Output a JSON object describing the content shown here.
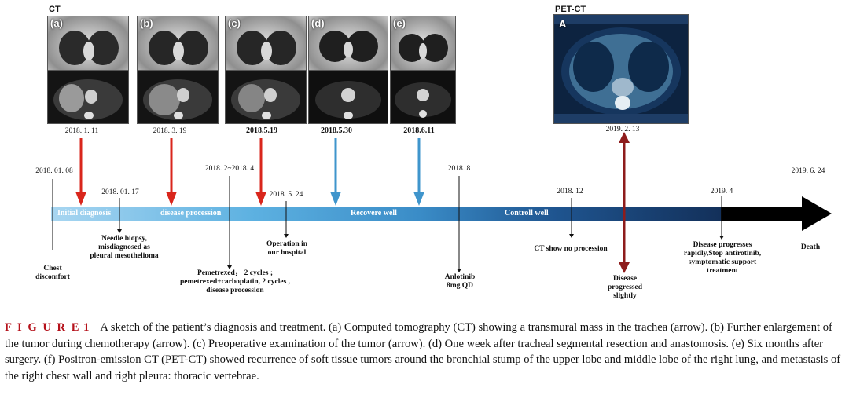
{
  "figure": {
    "ct_label": "CT",
    "pet_label": "PET-CT",
    "scans": [
      {
        "letter": "(a)"
      },
      {
        "letter": "(b)"
      },
      {
        "letter": "(c)"
      },
      {
        "letter": "(d)"
      },
      {
        "letter": "(e)"
      }
    ],
    "pet_letter": "A"
  },
  "timeline": {
    "scan_dates": [
      "2018. 1. 11",
      "2018. 3. 19",
      "2018.5.19",
      "2018.5.30",
      "2018.6.11",
      "2019. 2. 13"
    ],
    "upper_dates": [
      "2018. 01. 08",
      "2018. 01. 17",
      "2018. 2~2018. 4",
      "2018. 5. 24",
      "2018. 8",
      "2018. 12",
      "2019. 4",
      "2019. 6. 24"
    ],
    "phases": [
      "Initial diagnosis",
      "disease procession",
      "Recovere well",
      "Controll well"
    ],
    "notes": {
      "chest": "Chest\ndiscomfort",
      "biopsy": "Needle biopsy,\nmisdiagnosed as\npleural mesothelioma",
      "pemetrexed": "Pemetrexed， 2 cycles ;\npemetrexed+carboplatin, 2 cycles ,\ndisease procession",
      "operation": "Operation in\nour hospital",
      "anlotinib": "Anlotinib\n8mg QD",
      "ct_no": "CT show no procession",
      "progressed_slightly": "Disease\nprogressed\nslightly",
      "progresses_rapidly": "Disease progresses\nrapidly,Stop antirotinib,\nsymptomatic support\ntreatment",
      "death": "Death"
    },
    "colors": {
      "phase1": "#9fd1ef",
      "phase2": "#5fb3e2",
      "phase3": "#3b8fc9",
      "phase4": "#1d4f86",
      "phase5": "#132f57",
      "final": "#000000",
      "red_arrow": "#d9261c",
      "blue_arrow": "#3f95cc",
      "dark_red_arrow": "#8e1c1c"
    }
  },
  "caption": {
    "label": "F I G U R E",
    "number": "1",
    "text": "A sketch of the patient’s diagnosis and treatment. (a) Computed tomography (CT) showing a transmural mass in the trachea (arrow). (b) Further enlargement of the tumor during chemotherapy (arrow). (c) Preoperative examination of the tumor (arrow). (d) One week after tracheal segmental resection and anastomosis. (e) Six months after surgery. (f) Positron-emission CT (PET-CT) showed recurrence of soft tissue tumors around the bronchial stump of the upper lobe and middle lobe of the right lung, and metastasis of the right chest wall and right pleura: thoracic vertebrae."
  }
}
